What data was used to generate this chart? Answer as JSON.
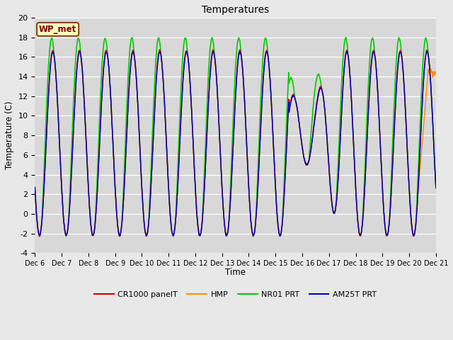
{
  "title": "Temperatures",
  "ylabel": "Temperature (C)",
  "xlabel": "Time",
  "ylim": [
    -4,
    20
  ],
  "xlim": [
    0,
    15
  ],
  "figsize": [
    6.4,
    4.8
  ],
  "dpi": 100,
  "background_color": "#e8e8e8",
  "plot_bg_color": "#d8d8d8",
  "grid_color": "#ffffff",
  "legend_label": "WP_met",
  "series": {
    "CR1000_panelT": {
      "color": "#cc0000",
      "label": "CR1000 panelT",
      "linewidth": 1.0,
      "zorder": 3
    },
    "HMP": {
      "color": "#ff8c00",
      "label": "HMP",
      "linewidth": 1.0,
      "zorder": 2
    },
    "NR01_PRT": {
      "color": "#00cc00",
      "label": "NR01 PRT",
      "linewidth": 1.2,
      "zorder": 1
    },
    "AM25T_PRT": {
      "color": "#0000cc",
      "label": "AM25T PRT",
      "linewidth": 1.0,
      "zorder": 4
    }
  },
  "xtick_labels": [
    "Dec 6",
    "Dec 7",
    "Dec 8",
    "Dec 9",
    "Dec 10",
    "Dec 11",
    "Dec 12",
    "Dec 13",
    "Dec 14",
    "Dec 15",
    "Dec 16",
    "Dec 17",
    "Dec 18",
    "Dec 19",
    "Dec 20",
    "Dec 21"
  ],
  "xtick_positions": [
    0,
    1,
    2,
    3,
    4,
    5,
    6,
    7,
    8,
    9,
    10,
    11,
    12,
    13,
    14,
    15
  ],
  "ytick_labels": [
    "-4",
    "-2",
    "0",
    "2",
    "4",
    "6",
    "8",
    "10",
    "12",
    "14",
    "16",
    "18",
    "20"
  ],
  "ytick_positions": [
    -4,
    -2,
    0,
    2,
    4,
    6,
    8,
    10,
    12,
    14,
    16,
    18,
    20
  ]
}
